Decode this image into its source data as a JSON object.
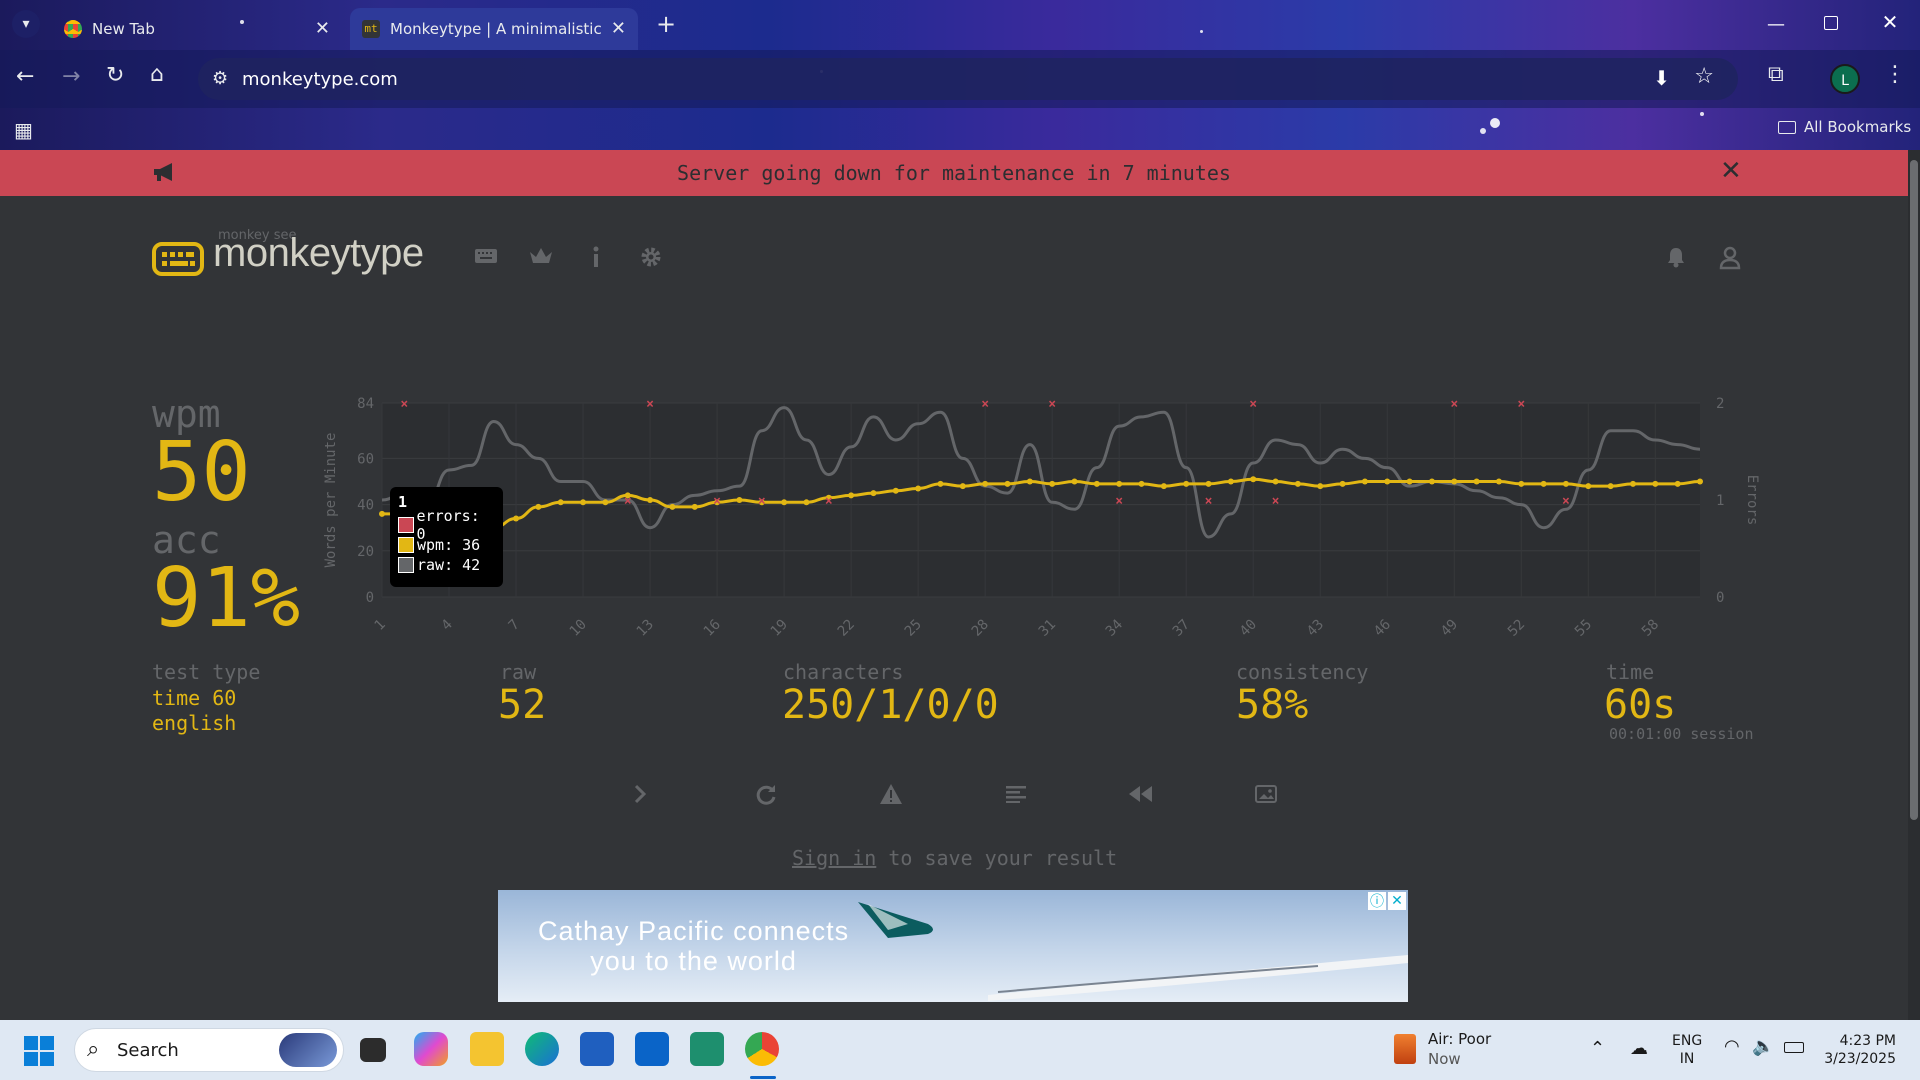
{
  "browser": {
    "tabs": [
      {
        "title": "New Tab",
        "active": false
      },
      {
        "title": "Monkeytype | A minimalistic, cu",
        "active": true
      }
    ],
    "new_tab_label": "+",
    "url": "monkeytype.com",
    "profile_initial": "L",
    "bookmarks_label": "All Bookmarks",
    "window_controls": [
      "minimize-icon",
      "restore-icon",
      "close-icon"
    ]
  },
  "banner": {
    "text": "Server going down for maintenance in 7 minutes",
    "close": "✕"
  },
  "header": {
    "logo_sub": "monkey see",
    "logo_text": "monkeytype",
    "nav_icons": [
      "keyboard-icon",
      "crown-icon",
      "info-icon",
      "settings-icon"
    ],
    "right_icons": [
      "bell-icon",
      "user-icon"
    ]
  },
  "result": {
    "wpm_label": "wpm",
    "wpm_value": "50",
    "acc_label": "acc",
    "acc_value": "91%",
    "test_type_label": "test type",
    "test_type_line1": "time 60",
    "test_type_line2": "english",
    "raw_label": "raw",
    "raw_value": "52",
    "characters_label": "characters",
    "characters_value": "250/1/0/0",
    "consistency_label": "consistency",
    "consistency_value": "58%",
    "time_label": "time",
    "time_value": "60s",
    "session_text": "00:01:00 session"
  },
  "chart_data": {
    "type": "line",
    "ylabel": "Words per Minute",
    "y2label": "Errors",
    "ylim": [
      0,
      84
    ],
    "y2lim": [
      0,
      2
    ],
    "y_ticks": [
      0,
      20,
      40,
      60,
      84
    ],
    "y2_ticks": [
      0,
      1,
      2
    ],
    "x_ticks": [
      1,
      4,
      7,
      10,
      13,
      16,
      19,
      22,
      25,
      28,
      31,
      34,
      37,
      40,
      43,
      46,
      49,
      52,
      55,
      58
    ],
    "x": [
      1,
      2,
      3,
      4,
      5,
      6,
      7,
      8,
      9,
      10,
      11,
      12,
      13,
      14,
      15,
      16,
      17,
      18,
      19,
      20,
      21,
      22,
      23,
      24,
      25,
      26,
      27,
      28,
      29,
      30,
      31,
      32,
      33,
      34,
      35,
      36,
      37,
      38,
      39,
      40,
      41,
      42,
      43,
      44,
      45,
      46,
      47,
      48,
      49,
      50,
      51,
      52,
      53,
      54,
      55,
      56,
      57,
      58,
      59,
      60
    ],
    "series": [
      {
        "name": "wpm",
        "color": "#e2b714",
        "values": [
          36,
          36,
          37,
          38,
          38,
          30,
          34,
          39,
          41,
          41,
          41,
          44,
          42,
          39,
          39,
          41,
          42,
          41,
          41,
          41,
          43,
          44,
          45,
          46,
          47,
          49,
          48,
          49,
          49,
          50,
          49,
          50,
          49,
          49,
          49,
          48,
          49,
          49,
          50,
          51,
          50,
          49,
          48,
          49,
          50,
          50,
          50,
          50,
          50,
          50,
          50,
          49,
          49,
          49,
          48,
          48,
          49,
          49,
          49,
          50
        ]
      },
      {
        "name": "raw",
        "color": "#646669",
        "values": [
          42,
          45,
          40,
          55,
          57,
          76,
          66,
          60,
          50,
          50,
          42,
          42,
          30,
          40,
          44,
          46,
          48,
          72,
          82,
          68,
          53,
          65,
          78,
          68,
          75,
          80,
          60,
          48,
          45,
          66,
          41,
          38,
          56,
          74,
          78,
          80,
          56,
          26,
          36,
          58,
          68,
          66,
          58,
          64,
          60,
          56,
          48,
          50,
          49,
          46,
          43,
          40,
          30,
          38,
          55,
          72,
          72,
          68,
          66,
          64
        ]
      },
      {
        "name": "errors",
        "color": "#ca4754",
        "values": [
          0,
          2,
          0,
          1,
          0,
          0,
          0,
          0,
          0,
          0,
          0,
          1,
          2,
          0,
          0,
          1,
          0,
          1,
          0,
          0,
          1,
          0,
          0,
          0,
          0,
          0,
          0,
          2,
          0,
          0,
          2,
          0,
          0,
          1,
          0,
          0,
          0,
          1,
          0,
          2,
          1,
          0,
          0,
          0,
          0,
          0,
          0,
          0,
          2,
          0,
          0,
          2,
          0,
          1,
          0,
          0,
          0,
          0,
          0,
          0
        ]
      }
    ],
    "grid": true
  },
  "tooltip": {
    "title": "1",
    "rows": [
      {
        "label": "errors: 0",
        "color": "#ca4754"
      },
      {
        "label": "wpm: 36",
        "color": "#e2b714"
      },
      {
        "label": "raw: 42",
        "color": "#646669"
      }
    ]
  },
  "actions": [
    "next-test-icon",
    "restart-icon",
    "warning-icon",
    "words-history-icon",
    "replay-icon",
    "screenshot-icon"
  ],
  "signin": {
    "link": "Sign in",
    "rest": " to save your result"
  },
  "ad": {
    "line1": "Cathay Pacific connects",
    "line2": "you to the world",
    "info_badge": "ⓘ",
    "close_badge": "✕"
  },
  "taskbar": {
    "search_placeholder": "Search",
    "weather_title": "Air: Poor",
    "weather_sub": "Now",
    "lang1": "ENG",
    "lang2": "IN",
    "time": "4:23 PM",
    "date": "3/23/2025"
  }
}
